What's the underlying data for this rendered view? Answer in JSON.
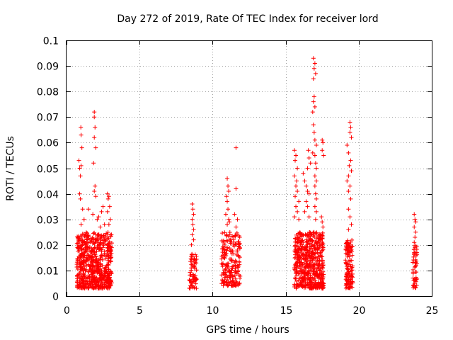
{
  "chart_data": {
    "type": "scatter",
    "title": "Day 272 of 2019, Rate Of TEC Index for receiver lord",
    "xlabel": "GPS time / hours",
    "ylabel": "ROTI / TECUs",
    "xlim": [
      0,
      25
    ],
    "ylim": [
      0,
      0.1
    ],
    "x_ticks": [
      "0",
      "5",
      "10",
      "15",
      "20",
      "25"
    ],
    "y_ticks": [
      "0",
      "0.01",
      "0.02",
      "0.03",
      "0.04",
      "0.05",
      "0.06",
      "0.07",
      "0.08",
      "0.09",
      "0.1"
    ],
    "grid": true,
    "marker": "+",
    "color": "#ff0000",
    "clusters": [
      {
        "x_range": [
          0.7,
          3.1
        ],
        "y_range": [
          0.003,
          0.025
        ],
        "count": 650
      },
      {
        "x_range": [
          8.4,
          8.9
        ],
        "y_range": [
          0.003,
          0.018
        ],
        "count": 70
      },
      {
        "x_range": [
          10.6,
          11.9
        ],
        "y_range": [
          0.004,
          0.025
        ],
        "count": 200
      },
      {
        "x_range": [
          15.6,
          17.6
        ],
        "y_range": [
          0.003,
          0.025
        ],
        "count": 550
      },
      {
        "x_range": [
          19.1,
          19.6
        ],
        "y_range": [
          0.003,
          0.022
        ],
        "count": 130
      },
      {
        "x_range": [
          23.7,
          24.0
        ],
        "y_range": [
          0.003,
          0.02
        ],
        "count": 50
      }
    ],
    "points": [
      [
        0.85,
        0.053
      ],
      [
        0.9,
        0.05
      ],
      [
        0.95,
        0.047
      ],
      [
        1.0,
        0.051
      ],
      [
        0.98,
        0.066
      ],
      [
        1.0,
        0.063
      ],
      [
        1.05,
        0.058
      ],
      [
        0.9,
        0.04
      ],
      [
        0.95,
        0.038
      ],
      [
        1.1,
        0.034
      ],
      [
        1.0,
        0.028
      ],
      [
        1.2,
        0.03
      ],
      [
        1.9,
        0.072
      ],
      [
        1.9,
        0.07
      ],
      [
        1.95,
        0.066
      ],
      [
        1.9,
        0.062
      ],
      [
        2.0,
        0.058
      ],
      [
        1.85,
        0.052
      ],
      [
        1.95,
        0.043
      ],
      [
        1.9,
        0.041
      ],
      [
        2.0,
        0.039
      ],
      [
        1.8,
        0.032
      ],
      [
        2.1,
        0.03
      ],
      [
        2.4,
        0.033
      ],
      [
        2.5,
        0.035
      ],
      [
        2.2,
        0.031
      ],
      [
        2.8,
        0.04
      ],
      [
        2.85,
        0.038
      ],
      [
        2.9,
        0.039
      ],
      [
        2.95,
        0.035
      ],
      [
        2.8,
        0.033
      ],
      [
        3.0,
        0.03
      ],
      [
        2.9,
        0.028
      ],
      [
        1.5,
        0.034
      ],
      [
        2.6,
        0.028
      ],
      [
        2.3,
        0.027
      ],
      [
        8.6,
        0.036
      ],
      [
        8.65,
        0.034
      ],
      [
        8.7,
        0.032
      ],
      [
        8.6,
        0.03
      ],
      [
        8.65,
        0.028
      ],
      [
        8.7,
        0.026
      ],
      [
        8.6,
        0.024
      ],
      [
        8.7,
        0.022
      ],
      [
        8.55,
        0.02
      ],
      [
        11.0,
        0.046
      ],
      [
        11.05,
        0.043
      ],
      [
        11.1,
        0.041
      ],
      [
        10.95,
        0.039
      ],
      [
        11.0,
        0.037
      ],
      [
        11.05,
        0.034
      ],
      [
        10.9,
        0.032
      ],
      [
        11.1,
        0.03
      ],
      [
        11.0,
        0.028
      ],
      [
        11.15,
        0.029
      ],
      [
        11.6,
        0.058
      ],
      [
        11.6,
        0.042
      ],
      [
        11.5,
        0.032
      ],
      [
        11.7,
        0.03
      ],
      [
        11.6,
        0.027
      ],
      [
        16.9,
        0.093
      ],
      [
        17.0,
        0.091
      ],
      [
        16.95,
        0.089
      ],
      [
        17.05,
        0.087
      ],
      [
        16.9,
        0.085
      ],
      [
        16.95,
        0.078
      ],
      [
        16.9,
        0.076
      ],
      [
        17.0,
        0.074
      ],
      [
        16.85,
        0.072
      ],
      [
        16.9,
        0.067
      ],
      [
        16.95,
        0.064
      ],
      [
        17.0,
        0.061
      ],
      [
        17.1,
        0.059
      ],
      [
        16.85,
        0.056
      ],
      [
        15.6,
        0.057
      ],
      [
        15.7,
        0.055
      ],
      [
        15.65,
        0.053
      ],
      [
        15.8,
        0.05
      ],
      [
        15.6,
        0.047
      ],
      [
        15.75,
        0.045
      ],
      [
        15.7,
        0.043
      ],
      [
        15.8,
        0.041
      ],
      [
        15.65,
        0.039
      ],
      [
        15.9,
        0.037
      ],
      [
        15.7,
        0.035
      ],
      [
        15.8,
        0.033
      ],
      [
        15.6,
        0.031
      ],
      [
        15.9,
        0.03
      ],
      [
        16.2,
        0.048
      ],
      [
        16.3,
        0.045
      ],
      [
        16.4,
        0.043
      ],
      [
        16.5,
        0.041
      ],
      [
        16.6,
        0.04
      ],
      [
        16.4,
        0.037
      ],
      [
        16.5,
        0.035
      ],
      [
        16.3,
        0.033
      ],
      [
        16.6,
        0.031
      ],
      [
        16.55,
        0.057
      ],
      [
        16.6,
        0.054
      ],
      [
        16.7,
        0.052
      ],
      [
        16.5,
        0.05
      ],
      [
        17.0,
        0.055
      ],
      [
        17.05,
        0.052
      ],
      [
        17.1,
        0.05
      ],
      [
        17.0,
        0.047
      ],
      [
        17.1,
        0.045
      ],
      [
        17.0,
        0.043
      ],
      [
        17.05,
        0.04
      ],
      [
        17.1,
        0.038
      ],
      [
        17.0,
        0.035
      ],
      [
        17.1,
        0.033
      ],
      [
        17.05,
        0.03
      ],
      [
        17.5,
        0.061
      ],
      [
        17.55,
        0.06
      ],
      [
        17.5,
        0.057
      ],
      [
        17.6,
        0.055
      ],
      [
        17.45,
        0.031
      ],
      [
        17.5,
        0.029
      ],
      [
        17.55,
        0.027
      ],
      [
        19.4,
        0.068
      ],
      [
        19.45,
        0.066
      ],
      [
        19.4,
        0.064
      ],
      [
        19.5,
        0.062
      ],
      [
        19.2,
        0.059
      ],
      [
        19.3,
        0.056
      ],
      [
        19.45,
        0.053
      ],
      [
        19.35,
        0.051
      ],
      [
        19.5,
        0.049
      ],
      [
        19.3,
        0.047
      ],
      [
        19.2,
        0.045
      ],
      [
        19.4,
        0.043
      ],
      [
        19.3,
        0.041
      ],
      [
        19.45,
        0.038
      ],
      [
        19.3,
        0.034
      ],
      [
        19.4,
        0.031
      ],
      [
        19.5,
        0.028
      ],
      [
        19.3,
        0.026
      ],
      [
        23.8,
        0.032
      ],
      [
        23.85,
        0.03
      ],
      [
        23.9,
        0.029
      ],
      [
        23.8,
        0.027
      ],
      [
        23.9,
        0.025
      ],
      [
        23.85,
        0.023
      ],
      [
        23.8,
        0.021
      ]
    ]
  }
}
